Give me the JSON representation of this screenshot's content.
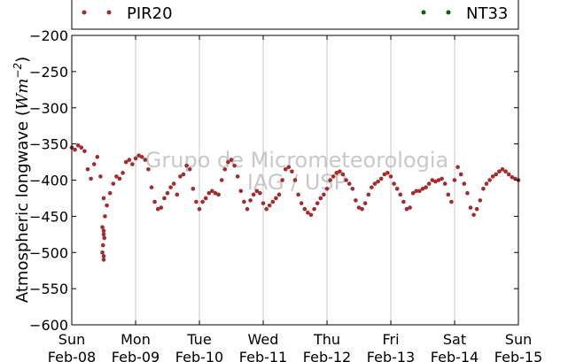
{
  "chart_data": {
    "type": "scatter",
    "ylabel": "Atmospheric longwave (Wm⁻²)",
    "ylabel_plain": "Atmospheric longwave (",
    "ylabel_unit_base": "Wm",
    "ylabel_unit_exp": "−2",
    "ylabel_close": ")",
    "ylim": [
      -600,
      -200
    ],
    "yticks": [
      -200,
      -250,
      -300,
      -350,
      -400,
      -450,
      -500,
      -550,
      -600
    ],
    "ytick_labels": [
      "−200",
      "−250",
      "−300",
      "−350",
      "−400",
      "−450",
      "−500",
      "−550",
      "−600"
    ],
    "x_day_range": [
      0,
      7
    ],
    "xtick_labels": [
      [
        "Sun",
        "Feb-08"
      ],
      [
        "Mon",
        "Feb-09"
      ],
      [
        "Tue",
        "Feb-10"
      ],
      [
        "Wed",
        "Feb-11"
      ],
      [
        "Thu",
        "Feb-12"
      ],
      [
        "Fri",
        "Feb-13"
      ],
      [
        "Sat",
        "Feb-14"
      ],
      [
        "Sun",
        "Feb-15"
      ]
    ],
    "grid": "vertical",
    "legend_placement": "top",
    "watermark": [
      "Grupo de Micrometeorologia",
      "IAG / USP"
    ],
    "series": [
      {
        "name": "PIR20",
        "color": "#a52a2a",
        "x": [
          0.0,
          0.05,
          0.1,
          0.15,
          0.2,
          0.25,
          0.3,
          0.35,
          0.4,
          0.45,
          0.5,
          0.55,
          0.6,
          0.65,
          0.7,
          0.75,
          0.8,
          0.85,
          0.9,
          0.95,
          1.0,
          1.05,
          1.1,
          1.15,
          1.2,
          1.25,
          1.3,
          1.35,
          1.4,
          1.45,
          1.5,
          1.55,
          1.6,
          1.65,
          1.7,
          1.75,
          1.8,
          1.85,
          1.9,
          1.95,
          2.0,
          2.05,
          2.1,
          2.15,
          2.2,
          2.25,
          2.3,
          2.35,
          2.4,
          2.45,
          2.5,
          2.55,
          2.6,
          2.65,
          2.7,
          2.75,
          2.8,
          2.85,
          2.9,
          2.95,
          3.0,
          3.05,
          3.1,
          3.15,
          3.2,
          3.25,
          3.3,
          3.35,
          3.4,
          3.45,
          3.5,
          3.55,
          3.6,
          3.65,
          3.7,
          3.75,
          3.8,
          3.85,
          3.9,
          3.95,
          4.0,
          4.05,
          4.1,
          4.15,
          4.2,
          4.25,
          4.3,
          4.35,
          4.4,
          4.45,
          4.5,
          4.55,
          4.6,
          4.65,
          4.7,
          4.75,
          4.8,
          4.85,
          4.9,
          4.95,
          5.0,
          5.05,
          5.1,
          5.15,
          5.2,
          5.25,
          5.3,
          5.35,
          5.4,
          5.45,
          5.5,
          5.55,
          5.6,
          5.65,
          5.7,
          5.75,
          5.8,
          5.85,
          5.9,
          5.95,
          6.0,
          6.05,
          6.1,
          6.15,
          6.2,
          6.25,
          6.3,
          6.35,
          6.4,
          6.45,
          6.5,
          6.55,
          6.6,
          6.65,
          6.7,
          6.75,
          6.8,
          6.85,
          6.9,
          6.95,
          7.0,
          0.48,
          0.49,
          0.5,
          0.5,
          0.51,
          0.52,
          0.48,
          0.5,
          0.5
        ],
        "y": [
          -355,
          -358,
          -352,
          -355,
          -360,
          -385,
          -398,
          -378,
          -368,
          -395,
          -425,
          -435,
          -418,
          -405,
          -395,
          -398,
          -390,
          -375,
          -372,
          -378,
          -370,
          -366,
          -368,
          -372,
          -385,
          -410,
          -430,
          -440,
          -438,
          -425,
          -418,
          -410,
          -405,
          -420,
          -395,
          -392,
          -380,
          -385,
          -412,
          -430,
          -440,
          -430,
          -425,
          -418,
          -415,
          -418,
          -420,
          -400,
          -385,
          -375,
          -372,
          -380,
          -395,
          -415,
          -430,
          -440,
          -428,
          -420,
          -415,
          -418,
          -432,
          -440,
          -435,
          -430,
          -425,
          -420,
          -400,
          -385,
          -382,
          -388,
          -400,
          -420,
          -432,
          -440,
          -445,
          -448,
          -440,
          -432,
          -425,
          -420,
          -412,
          -400,
          -395,
          -390,
          -388,
          -392,
          -400,
          -405,
          -412,
          -428,
          -438,
          -440,
          -432,
          -420,
          -410,
          -405,
          -402,
          -398,
          -392,
          -390,
          -395,
          -405,
          -412,
          -420,
          -430,
          -440,
          -438,
          -418,
          -415,
          -415,
          -412,
          -410,
          -405,
          -400,
          -402,
          -400,
          -398,
          -405,
          -420,
          -430,
          -400,
          -382,
          -392,
          -405,
          -418,
          -438,
          -448,
          -440,
          -428,
          -412,
          -405,
          -400,
          -395,
          -392,
          -388,
          -385,
          -388,
          -392,
          -396,
          -398,
          -400,
          -465,
          -490,
          -510,
          -470,
          -480,
          -450,
          -500,
          -505,
          -475
        ]
      },
      {
        "name": "NT33",
        "color": "#006400",
        "x": [],
        "y": []
      }
    ]
  }
}
